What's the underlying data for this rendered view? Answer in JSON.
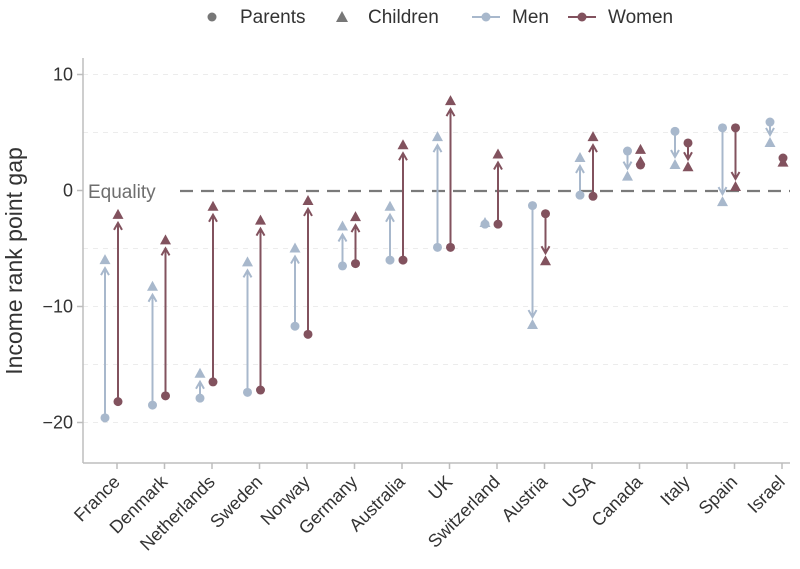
{
  "chart_data": {
    "type": "scatter",
    "ylabel": "Income rank point gap",
    "xlabel": "",
    "title": "",
    "ylim": [
      -23.5,
      11.5
    ],
    "yticks": [
      10,
      0,
      -10,
      -20
    ],
    "reference_line": {
      "y": 0,
      "label": "Equality",
      "style": "dashed"
    },
    "legend": {
      "placement": "top",
      "items": [
        {
          "label": "Parents",
          "shape": "circle",
          "color": "#777777"
        },
        {
          "label": "Children",
          "shape": "triangle",
          "color": "#777777"
        },
        {
          "label": "Men",
          "shape": "line-point",
          "color": "#a8b8cc"
        },
        {
          "label": "Women",
          "shape": "line-point",
          "color": "#82525e"
        }
      ]
    },
    "categories": [
      "France",
      "Denmark",
      "Netherlands",
      "Sweden",
      "Norway",
      "Germany",
      "Australia",
      "UK",
      "Switzerland",
      "Austria",
      "USA",
      "Canada",
      "Italy",
      "Spain",
      "Israel"
    ],
    "series": [
      {
        "name": "Men",
        "color": "#a8b8cc",
        "parents": [
          -19.6,
          -18.5,
          -17.9,
          -17.4,
          -11.7,
          -6.5,
          -6.0,
          -4.9,
          -2.9,
          -1.3,
          -0.4,
          3.4,
          5.1,
          5.4,
          5.9
        ],
        "children": [
          -6.0,
          -8.3,
          -15.8,
          -6.2,
          -5.0,
          -3.1,
          -1.4,
          4.6,
          -2.8,
          -11.6,
          2.8,
          1.2,
          2.2,
          -1.0,
          4.1
        ]
      },
      {
        "name": "Women",
        "color": "#82525e",
        "parents": [
          -18.2,
          -17.7,
          -16.5,
          -17.2,
          -12.4,
          -6.3,
          -6.0,
          -4.9,
          -2.9,
          -2.0,
          -0.5,
          2.2,
          4.1,
          5.4,
          2.8
        ],
        "children": [
          -2.1,
          -4.3,
          -1.4,
          -2.6,
          -0.9,
          -2.3,
          3.9,
          7.7,
          3.1,
          -6.1,
          4.6,
          3.5,
          2.0,
          0.3,
          2.4
        ]
      }
    ]
  }
}
